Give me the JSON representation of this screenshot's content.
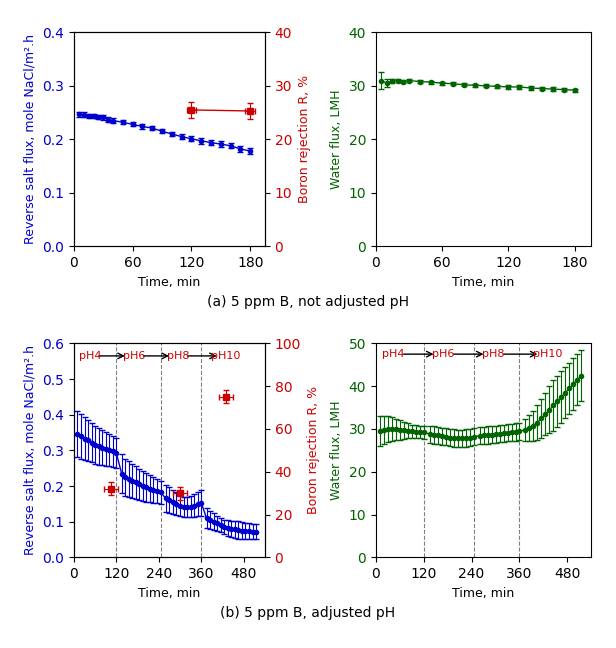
{
  "chart_data": [
    {
      "type": "line",
      "xlabel": "Time, min",
      "ylabel": "Reverse salt flux, mole NaCl/m².h",
      "y2label": "Boron rejection R, %",
      "xlim": [
        0,
        195
      ],
      "xticks": [
        0,
        60,
        120,
        180
      ],
      "ylim": [
        0.0,
        0.4
      ],
      "yticks": [
        0.0,
        0.1,
        0.2,
        0.3,
        0.4
      ],
      "y2lim": [
        0,
        40
      ],
      "y2ticks": [
        0,
        10,
        20,
        30,
        40
      ],
      "series": [
        {
          "color": "#0000CC",
          "marker": "circle",
          "line_style": "solid",
          "x": [
            5,
            10,
            15,
            20,
            25,
            30,
            35,
            40,
            50,
            60,
            70,
            80,
            90,
            100,
            110,
            120,
            130,
            140,
            150,
            160,
            170,
            180
          ],
          "values": [
            0.247,
            0.246,
            0.244,
            0.243,
            0.242,
            0.241,
            0.237,
            0.235,
            0.232,
            0.228,
            0.224,
            0.221,
            0.215,
            0.21,
            0.205,
            0.201,
            0.197,
            0.194,
            0.191,
            0.188,
            0.182,
            0.178
          ],
          "yerr": [
            0.005,
            0.005,
            0.004,
            0.004,
            0.004,
            0.004,
            0.004,
            0.004,
            0.004,
            0.004,
            0.004,
            0.004,
            0.004,
            0.004,
            0.005,
            0.005,
            0.005,
            0.005,
            0.005,
            0.005,
            0.005,
            0.005
          ]
        },
        {
          "color": "#CC0000",
          "marker": "square",
          "line_style": "solid",
          "axis": "y2",
          "x": [
            120,
            180
          ],
          "values": [
            25.5,
            25.3
          ],
          "xerr": [
            5,
            5
          ],
          "yerr": [
            1.5,
            1.5
          ]
        }
      ]
    },
    {
      "type": "line",
      "xlabel": "Time, min",
      "ylabel": "Water flux, LMH",
      "xlim": [
        0,
        195
      ],
      "xticks": [
        0,
        60,
        120,
        180
      ],
      "ylim": [
        0,
        40
      ],
      "yticks": [
        0,
        10,
        20,
        30,
        40
      ],
      "series": [
        {
          "color": "#006400",
          "marker": "circle",
          "line_style": "solid",
          "x": [
            5,
            10,
            15,
            20,
            25,
            30,
            40,
            50,
            60,
            70,
            80,
            90,
            100,
            110,
            120,
            130,
            140,
            150,
            160,
            170,
            180
          ],
          "values": [
            31.0,
            30.5,
            30.9,
            31.0,
            30.8,
            31.0,
            30.8,
            30.7,
            30.5,
            30.4,
            30.2,
            30.1,
            30.0,
            29.9,
            29.8,
            29.8,
            29.6,
            29.5,
            29.4,
            29.3,
            29.2
          ],
          "yerr": [
            1.5,
            0.8,
            0.3,
            0.3,
            0.3,
            0.3,
            0.3,
            0.3,
            0.3,
            0.3,
            0.3,
            0.3,
            0.3,
            0.3,
            0.3,
            0.3,
            0.3,
            0.3,
            0.3,
            0.3,
            0.3
          ]
        }
      ]
    },
    {
      "type": "line",
      "xlabel": "Time, min",
      "ylabel": "Reverse salt flux, mole NaCl/m².h",
      "y2label": "Boron rejection R, %",
      "xlim": [
        0,
        540
      ],
      "xticks": [
        0,
        120,
        240,
        360,
        480
      ],
      "ylim": [
        0.0,
        0.6
      ],
      "yticks": [
        0.0,
        0.1,
        0.2,
        0.3,
        0.4,
        0.5,
        0.6
      ],
      "y2lim": [
        0,
        100
      ],
      "y2ticks": [
        0,
        20,
        40,
        60,
        80,
        100
      ],
      "vlines": [
        120,
        245,
        360
      ],
      "series": [
        {
          "color": "#0000CC",
          "marker": "circle",
          "line_style": "solid",
          "x": [
            10,
            20,
            30,
            40,
            50,
            60,
            70,
            80,
            90,
            100,
            110,
            120,
            135,
            145,
            155,
            165,
            175,
            185,
            195,
            205,
            215,
            225,
            235,
            245,
            260,
            270,
            280,
            290,
            300,
            310,
            320,
            330,
            340,
            350,
            360,
            375,
            385,
            395,
            405,
            415,
            425,
            435,
            445,
            455,
            465,
            475,
            485,
            495,
            505,
            515
          ],
          "values": [
            0.345,
            0.34,
            0.333,
            0.328,
            0.322,
            0.316,
            0.311,
            0.308,
            0.304,
            0.3,
            0.297,
            0.292,
            0.235,
            0.225,
            0.22,
            0.215,
            0.21,
            0.205,
            0.2,
            0.196,
            0.192,
            0.188,
            0.185,
            0.182,
            0.165,
            0.16,
            0.155,
            0.15,
            0.145,
            0.142,
            0.14,
            0.142,
            0.145,
            0.15,
            0.153,
            0.11,
            0.105,
            0.1,
            0.095,
            0.09,
            0.085,
            0.082,
            0.08,
            0.078,
            0.076,
            0.075,
            0.074,
            0.073,
            0.072,
            0.072
          ],
          "yerr": [
            0.065,
            0.063,
            0.06,
            0.057,
            0.055,
            0.053,
            0.051,
            0.049,
            0.047,
            0.045,
            0.043,
            0.042,
            0.055,
            0.052,
            0.05,
            0.048,
            0.046,
            0.044,
            0.042,
            0.04,
            0.038,
            0.036,
            0.034,
            0.032,
            0.038,
            0.036,
            0.034,
            0.032,
            0.03,
            0.028,
            0.028,
            0.03,
            0.032,
            0.034,
            0.036,
            0.028,
            0.026,
            0.024,
            0.022,
            0.02,
            0.02,
            0.022,
            0.023,
            0.024,
            0.025,
            0.024,
            0.023,
            0.022,
            0.021,
            0.02
          ]
        },
        {
          "color": "#CC0000",
          "marker": "square",
          "line_style": "none",
          "type": "scatter",
          "axis": "y2",
          "x": [
            105,
            300,
            430
          ],
          "values": [
            32,
            30,
            75
          ],
          "xerr": [
            20,
            20,
            20
          ],
          "yerr": [
            3,
            3,
            3
          ]
        }
      ],
      "annotations": [
        {
          "text": "pH4",
          "x": 45,
          "y": 0.565,
          "color": "#CC0000"
        },
        {
          "text": "pH6",
          "x": 170,
          "y": 0.565,
          "color": "#CC0000"
        },
        {
          "text": "pH8",
          "x": 295,
          "y": 0.565,
          "color": "#CC0000"
        },
        {
          "text": "pH10",
          "x": 430,
          "y": 0.565,
          "color": "#CC0000"
        }
      ]
    },
    {
      "type": "line",
      "xlabel": "Time, min",
      "ylabel": "Water flux, LMH",
      "xlim": [
        0,
        540
      ],
      "xticks": [
        0,
        120,
        240,
        360,
        480
      ],
      "ylim": [
        0,
        50
      ],
      "yticks": [
        0,
        10,
        20,
        30,
        40,
        50
      ],
      "vlines": [
        120,
        245,
        360
      ],
      "series": [
        {
          "color": "#006400",
          "marker": "circle",
          "line_style": "solid",
          "x": [
            10,
            20,
            30,
            40,
            50,
            60,
            70,
            80,
            90,
            100,
            110,
            120,
            135,
            145,
            155,
            165,
            175,
            185,
            195,
            205,
            215,
            225,
            235,
            245,
            260,
            270,
            280,
            290,
            300,
            310,
            320,
            330,
            340,
            350,
            360,
            375,
            385,
            395,
            405,
            415,
            425,
            435,
            445,
            455,
            465,
            475,
            485,
            495,
            505,
            515
          ],
          "values": [
            29.5,
            29.8,
            30.0,
            30.0,
            29.9,
            29.8,
            29.7,
            29.6,
            29.5,
            29.4,
            29.3,
            29.2,
            28.8,
            28.6,
            28.5,
            28.3,
            28.2,
            28.0,
            27.9,
            27.8,
            27.8,
            27.9,
            28.0,
            28.2,
            28.4,
            28.5,
            28.6,
            28.7,
            28.8,
            28.9,
            29.0,
            29.1,
            29.2,
            29.3,
            29.5,
            29.8,
            30.2,
            30.8,
            31.5,
            32.5,
            33.5,
            34.5,
            35.5,
            36.5,
            37.5,
            38.5,
            39.5,
            40.5,
            41.5,
            42.5
          ],
          "yerr": [
            3.5,
            3.2,
            3.0,
            2.8,
            2.5,
            2.3,
            2.0,
            1.8,
            1.5,
            1.5,
            1.5,
            1.5,
            2.0,
            2.0,
            2.0,
            2.0,
            2.0,
            2.0,
            2.0,
            2.0,
            2.0,
            2.0,
            2.0,
            2.0,
            2.0,
            2.0,
            2.0,
            2.0,
            2.0,
            2.0,
            2.0,
            2.0,
            2.0,
            2.0,
            2.0,
            2.5,
            3.0,
            3.5,
            4.0,
            4.5,
            5.0,
            5.5,
            6.0,
            6.0,
            6.0,
            6.0,
            6.0,
            6.0,
            6.0,
            6.0
          ]
        }
      ],
      "annotations": [
        {
          "text": "pH4",
          "x": 45,
          "y": 47.5,
          "color": "#CC0000"
        },
        {
          "text": "pH6",
          "x": 170,
          "y": 47.5,
          "color": "#CC0000"
        },
        {
          "text": "pH8",
          "x": 295,
          "y": 47.5,
          "color": "#CC0000"
        },
        {
          "text": "pH10",
          "x": 430,
          "y": 47.5,
          "color": "#CC0000"
        }
      ]
    }
  ],
  "annotations": [
    {
      "text": "(a) 5 ppm B, not adjusted pH"
    },
    {
      "text": "(b) 5 ppm B, adjusted pH"
    }
  ]
}
